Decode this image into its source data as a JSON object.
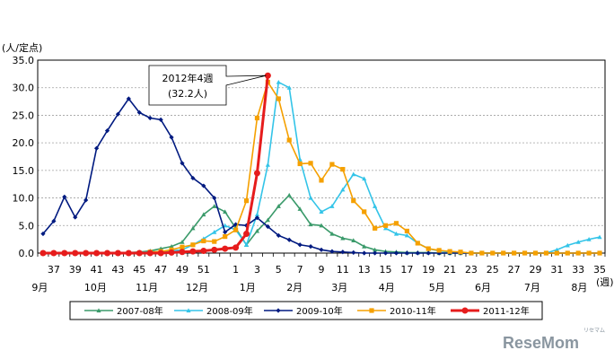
{
  "chart_data": {
    "type": "line",
    "y_unit_label": "(人/定点)",
    "x_unit_label": "(週)",
    "ylim": [
      0,
      35
    ],
    "y_ticks": [
      "0.0",
      "5.0",
      "10.0",
      "15.0",
      "20.0",
      "25.0",
      "30.0",
      "35.0"
    ],
    "x_weeks": [
      36,
      37,
      38,
      39,
      40,
      41,
      42,
      43,
      44,
      45,
      46,
      47,
      48,
      49,
      50,
      51,
      52,
      53,
      1,
      2,
      3,
      4,
      5,
      6,
      7,
      8,
      9,
      10,
      11,
      12,
      13,
      14,
      15,
      16,
      17,
      18,
      19,
      20,
      21,
      22,
      23,
      24,
      25,
      26,
      27,
      28,
      29,
      30,
      31,
      32,
      33,
      34,
      35
    ],
    "x_tick_labels": [
      "37",
      "39",
      "41",
      "43",
      "45",
      "47",
      "49",
      "51",
      "1",
      "3",
      "5",
      "7",
      "9",
      "11",
      "13",
      "15",
      "17",
      "19",
      "21",
      "23",
      "25",
      "27",
      "29",
      "31",
      "33",
      "35"
    ],
    "x_tick_weeks": [
      37,
      39,
      41,
      43,
      45,
      47,
      49,
      51,
      1,
      3,
      5,
      7,
      9,
      11,
      13,
      15,
      17,
      19,
      21,
      23,
      25,
      27,
      29,
      31,
      33,
      35
    ],
    "month_labels": [
      "9月",
      "10月",
      "11月",
      "12月",
      "1月",
      "2月",
      "3月",
      "4月",
      "5月",
      "6月",
      "7月",
      "8月"
    ],
    "series": [
      {
        "name": "2007-08年",
        "color": "#3a9a6a",
        "marker": "triangle",
        "values": [
          0,
          0,
          0,
          0,
          0,
          0,
          0,
          0,
          0.1,
          0.2,
          0.4,
          0.8,
          1.2,
          2,
          4.5,
          7,
          8.5,
          7.5,
          4.5,
          1.5,
          4,
          6,
          8.5,
          10.5,
          8,
          5.2,
          5,
          3.5,
          2.7,
          2.3,
          1.2,
          0.6,
          0.3,
          0.2,
          0.1,
          0.1,
          0.1,
          0,
          0,
          0,
          0,
          0,
          0,
          0,
          0,
          0,
          0,
          0,
          0,
          0,
          0,
          0,
          0
        ]
      },
      {
        "name": "2008-09年",
        "color": "#33c4e8",
        "marker": "triangle",
        "values": [
          0,
          0,
          0,
          0,
          0,
          0,
          0,
          0,
          0.1,
          0.1,
          0.2,
          0.3,
          0.4,
          0.6,
          1.5,
          2.6,
          3.8,
          5,
          4.2,
          1.5,
          7,
          16,
          31,
          30,
          17,
          10,
          7.5,
          8.5,
          11.5,
          14.3,
          13.5,
          8.5,
          4.5,
          3.5,
          3.2,
          1.8,
          0.8,
          0.4,
          0.2,
          0.1,
          0,
          0,
          0,
          0,
          0,
          0,
          0,
          0,
          0.6,
          1.4,
          2,
          2.5,
          2.9
        ]
      },
      {
        "name": "2009-10年",
        "color": "#001a80",
        "marker": "diamond",
        "values": [
          3.5,
          5.8,
          10.2,
          6.5,
          9.6,
          19,
          22.2,
          25.2,
          28,
          25.5,
          24.5,
          24.2,
          21,
          16.3,
          13.6,
          12.2,
          10,
          3.8,
          5.2,
          5,
          6.4,
          4.8,
          3.2,
          2.4,
          1.5,
          1.2,
          0.6,
          0.3,
          0.2,
          0.1,
          0,
          0,
          0,
          0,
          0,
          0,
          0,
          0,
          0,
          0,
          0,
          0,
          0,
          0,
          0,
          0,
          0,
          0,
          0,
          0,
          0,
          0,
          0
        ]
      },
      {
        "name": "2010-11年",
        "color": "#f5a000",
        "marker": "square",
        "values": [
          0,
          0,
          0,
          0,
          0,
          0,
          0,
          0,
          0,
          0,
          0.2,
          0.3,
          0.6,
          1.1,
          1.5,
          2.2,
          2.1,
          3,
          4.2,
          9.5,
          24.5,
          31,
          28,
          20.5,
          16.2,
          16.3,
          13.2,
          16.1,
          15.2,
          9.5,
          7.5,
          4.5,
          5,
          5.4,
          4,
          1.8,
          0.8,
          0.5,
          0.3,
          0.2,
          0,
          0,
          0,
          0,
          0,
          0,
          0,
          0,
          0,
          0,
          0,
          0,
          0
        ]
      },
      {
        "name": "2011-12年",
        "color": "#e61c1c",
        "marker": "circle",
        "values": [
          0,
          0,
          0,
          0,
          0,
          0,
          0,
          0,
          0,
          0,
          0,
          0,
          0.1,
          0.2,
          0.3,
          0.4,
          0.6,
          0.8,
          1,
          3.5,
          14.5,
          32.2
        ]
      }
    ],
    "annotation": {
      "line1": "2012年4週",
      "line2": "(32.2人)",
      "week": 4,
      "value": 32.2
    }
  },
  "watermark": {
    "brand": "ReseMom",
    "sub": "リセマム"
  }
}
